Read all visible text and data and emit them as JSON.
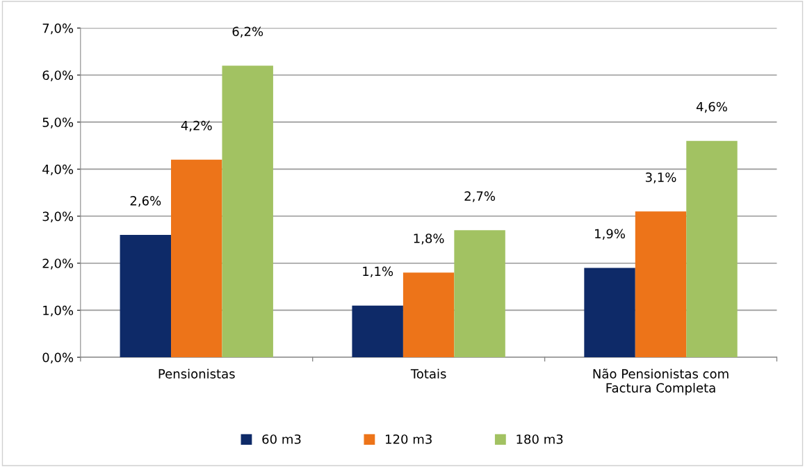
{
  "chart_data": {
    "type": "bar",
    "categories": [
      "Pensionistas",
      "Totais",
      "Não Pensionistas com\nFactura Completa"
    ],
    "series": [
      {
        "name": "60 m3",
        "color": "#0e2a68",
        "values": [
          2.6,
          1.1,
          1.9
        ],
        "value_labels": [
          "2,6%",
          "1,1%",
          "1,9%"
        ]
      },
      {
        "name": "120 m3",
        "color": "#ed7419",
        "values": [
          4.2,
          1.8,
          3.1
        ],
        "value_labels": [
          "4,2%",
          "1,8%",
          "3,1%"
        ]
      },
      {
        "name": "180 m3",
        "color": "#a2c262",
        "values": [
          6.2,
          2.7,
          4.6
        ],
        "value_labels": [
          "6,2%",
          "2,7%",
          "4,6%"
        ]
      }
    ],
    "ylim": [
      0,
      7
    ],
    "yticks": [
      {
        "value": 0,
        "label": "0,0%"
      },
      {
        "value": 1,
        "label": "1,0%"
      },
      {
        "value": 2,
        "label": "2,0%"
      },
      {
        "value": 3,
        "label": "3,0%"
      },
      {
        "value": 4,
        "label": "4,0%"
      },
      {
        "value": 5,
        "label": "5,0%"
      },
      {
        "value": 6,
        "label": "6,0%"
      },
      {
        "value": 7,
        "label": "7,0%"
      }
    ],
    "grid": "y",
    "legend": "bottom"
  }
}
